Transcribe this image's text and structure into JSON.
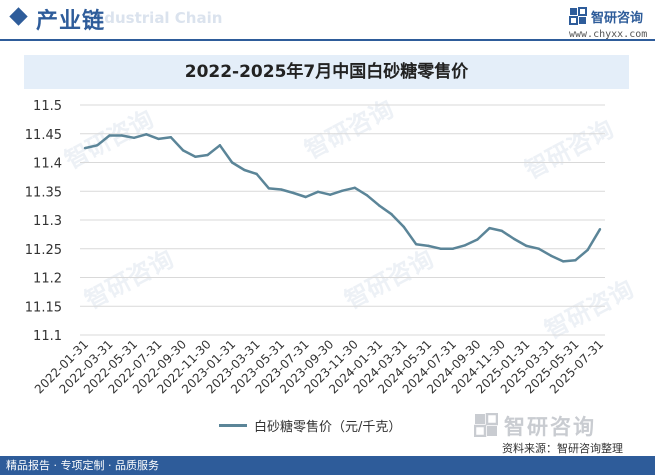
{
  "header": {
    "title": "产业链",
    "watermark_text": "Industrial Chain",
    "brand_name": "智研咨询",
    "brand_url": "www.chyxx.com"
  },
  "colors": {
    "brand_blue": "#2e5c9a",
    "title_bar_bg": "#e4eef9",
    "line": "#5b8598",
    "grid": "#d9d9d9"
  },
  "watermark": "智研咨询",
  "chart_data": {
    "type": "line",
    "title": "2022-2025年7月中国白砂糖零售价",
    "legend_position": "bottom",
    "grid": true,
    "ylim": [
      11.1,
      11.5
    ],
    "y_ticks": [
      "11.1",
      "11.15",
      "11.2",
      "11.25",
      "11.3",
      "11.35",
      "11.4",
      "11.45",
      "11.5"
    ],
    "x": [
      "2022-01-31",
      "2022-02-28",
      "2022-03-31",
      "2022-04-30",
      "2022-05-31",
      "2022-06-30",
      "2022-07-31",
      "2022-08-31",
      "2022-09-30",
      "2022-10-31",
      "2022-11-30",
      "2022-12-31",
      "2023-01-31",
      "2023-02-28",
      "2023-03-31",
      "2023-04-30",
      "2023-05-31",
      "2023-06-30",
      "2023-07-31",
      "2023-08-31",
      "2023-09-30",
      "2023-10-31",
      "2023-11-30",
      "2023-12-31",
      "2024-01-31",
      "2024-02-29",
      "2024-03-31",
      "2024-04-30",
      "2024-05-31",
      "2024-06-30",
      "2024-07-31",
      "2024-08-31",
      "2024-09-30",
      "2024-10-31",
      "2024-11-30",
      "2024-12-31",
      "2025-01-31",
      "2025-02-28",
      "2025-03-31",
      "2025-04-30",
      "2025-05-31",
      "2025-06-30",
      "2025-07-31"
    ],
    "x_tick_labels": [
      "2022-01-31",
      "2022-03-31",
      "2022-05-31",
      "2022-07-31",
      "2022-09-30",
      "2022-11-30",
      "2023-01-31",
      "2023-03-31",
      "2023-05-31",
      "2023-07-31",
      "2023-09-30",
      "2023-11-30",
      "2024-01-31",
      "2024-03-31",
      "2024-05-31",
      "2024-07-31",
      "2024-09-30",
      "2024-11-30",
      "2025-01-31",
      "2025-03-31",
      "2025-05-31",
      "2025-07-31"
    ],
    "series": [
      {
        "name": "白砂糖零售价（元/千克）",
        "values": [
          11.425,
          11.43,
          11.447,
          11.447,
          11.443,
          11.449,
          11.441,
          11.444,
          11.421,
          11.41,
          11.413,
          11.43,
          11.4,
          11.387,
          11.38,
          11.355,
          11.353,
          11.347,
          11.34,
          11.349,
          11.344,
          11.351,
          11.356,
          11.343,
          11.325,
          11.31,
          11.288,
          11.258,
          11.255,
          11.25,
          11.25,
          11.256,
          11.266,
          11.286,
          11.281,
          11.267,
          11.255,
          11.25,
          11.238,
          11.228,
          11.23,
          11.248,
          11.284
        ]
      }
    ]
  },
  "footer": {
    "source": "资料来源：智研咨询整理",
    "slogan": "精品报告 · 专项定制 · 品质服务",
    "logo_text": "智研咨询"
  }
}
